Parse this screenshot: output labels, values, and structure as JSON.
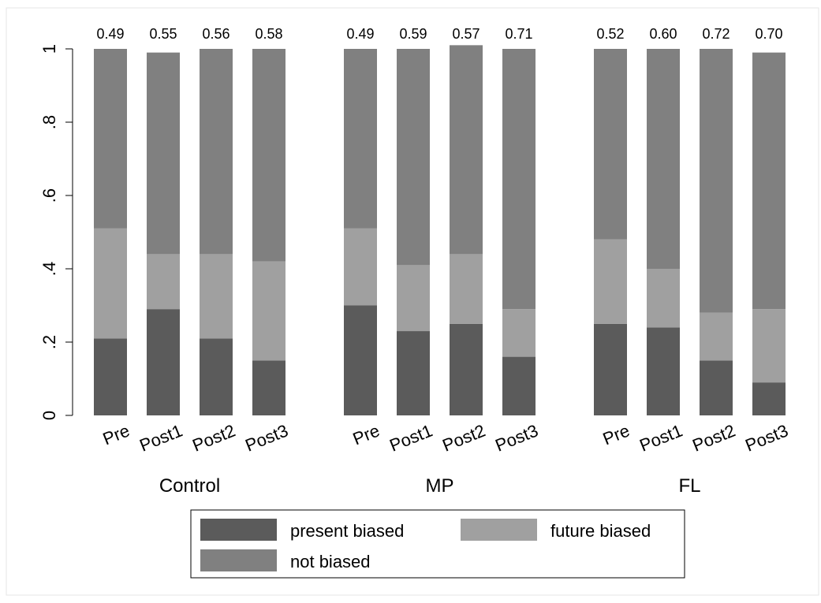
{
  "chart_data": {
    "type": "bar",
    "stacked": true,
    "groups": [
      "Control",
      "MP",
      "FL"
    ],
    "categories": [
      "Pre",
      "Post1",
      "Post2",
      "Post3"
    ],
    "series": [
      {
        "name": "present biased",
        "color": "#5b5b5b",
        "values": [
          [
            0.21,
            0.29,
            0.21,
            0.15
          ],
          [
            0.3,
            0.23,
            0.25,
            0.16
          ],
          [
            0.25,
            0.24,
            0.15,
            0.09
          ]
        ],
        "labels": [
          [
            "0.21",
            "0.29",
            "0.21",
            "0.15"
          ],
          [
            "0.30",
            "0.23",
            "0.25",
            "0.16"
          ],
          [
            "0.25",
            "0.24",
            "0.15",
            "0.09"
          ]
        ]
      },
      {
        "name": "future biased",
        "color": "#a0a0a0",
        "values": [
          [
            0.3,
            0.15,
            0.23,
            0.27
          ],
          [
            0.21,
            0.18,
            0.19,
            0.13
          ],
          [
            0.23,
            0.16,
            0.13,
            0.2
          ]
        ],
        "labels": [
          [
            "0.30",
            "0.15",
            "0.23",
            "0.27"
          ],
          [
            "0.21",
            "0.18",
            "0.19",
            "0.13"
          ],
          [
            "0.23",
            "0.16",
            "0.13",
            "0.20"
          ]
        ]
      },
      {
        "name": "not biased",
        "color": "#808080",
        "values": [
          [
            0.49,
            0.55,
            0.56,
            0.58
          ],
          [
            0.49,
            0.59,
            0.57,
            0.71
          ],
          [
            0.52,
            0.6,
            0.72,
            0.7
          ]
        ],
        "labels": [
          [
            "0.49",
            "0.55",
            "0.56",
            "0.58"
          ],
          [
            "0.49",
            "0.59",
            "0.57",
            "0.71"
          ],
          [
            "0.52",
            "0.60",
            "0.72",
            "0.70"
          ]
        ]
      }
    ],
    "y_ticks": [
      0,
      0.2,
      0.4,
      0.6,
      0.8,
      1
    ],
    "y_tick_labels": [
      "0",
      ".2",
      ".4",
      ".6",
      ".8",
      "1"
    ],
    "ylim": [
      0,
      1
    ],
    "grid": false,
    "legend_position": "bottom"
  }
}
